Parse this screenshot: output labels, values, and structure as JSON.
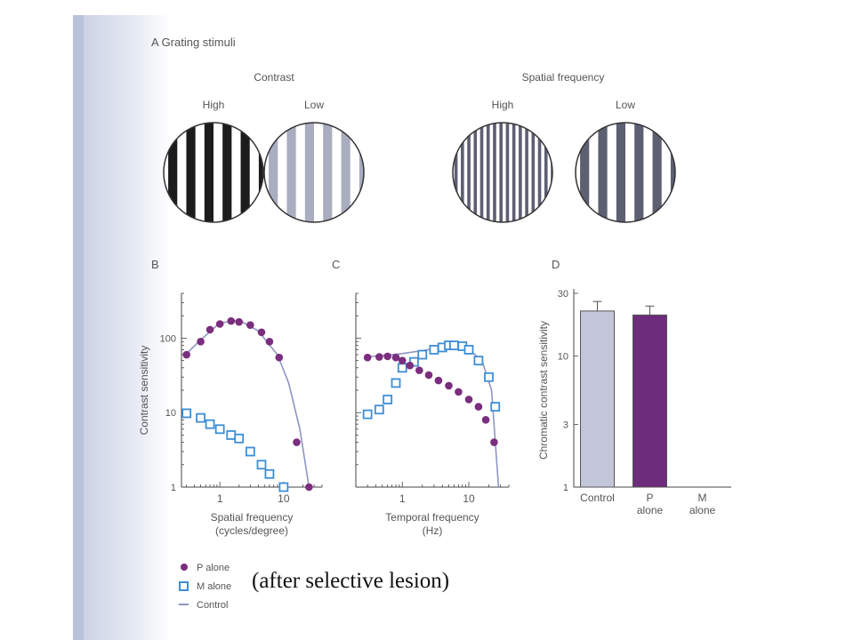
{
  "colors": {
    "p_alone": "#7b2d7e",
    "m_alone": "#3d8ed6",
    "control": "#8f95c4",
    "control_bar": "#c3c5d8",
    "p_bar": "#6e2c7c",
    "axis": "#444444",
    "text": "#555555"
  },
  "panel_a": {
    "title": "A  Grating stimuli",
    "contrast_title": "Contrast",
    "spatial_title": "Spatial frequency",
    "gratings": [
      {
        "label": "High",
        "stripe_count": 5,
        "stripe_color": "#1c1c1c"
      },
      {
        "label": "Low",
        "stripe_count": 5,
        "stripe_color": "#a9adbf"
      },
      {
        "label": "High",
        "stripe_count": 15,
        "stripe_color": "#5d5f72"
      },
      {
        "label": "Low",
        "stripe_count": 5,
        "stripe_color": "#5d5f72"
      }
    ]
  },
  "legend": {
    "p_alone": "P alone",
    "m_alone": "M alone",
    "control": "Control"
  },
  "note": "(after selective lesion)",
  "chart_data": [
    {
      "panel": "B",
      "type": "scatter",
      "xscale": "log",
      "yscale": "log",
      "xlabel": "Spatial frequency",
      "xlabel2": "(cycles/degree)",
      "ylabel": "Contrast sensitivity",
      "xlim": [
        0.25,
        40
      ],
      "ylim": [
        1,
        400
      ],
      "xticks": [
        1,
        10
      ],
      "yticks": [
        1,
        10,
        100
      ],
      "series": [
        {
          "name": "P alone",
          "marker": "dot",
          "x": [
            0.3,
            0.5,
            0.7,
            1.0,
            1.5,
            2.0,
            3.0,
            4.5,
            6.0,
            8.5,
            16,
            25
          ],
          "y": [
            60,
            90,
            130,
            155,
            170,
            165,
            150,
            120,
            90,
            55,
            4,
            1
          ]
        },
        {
          "name": "M alone",
          "marker": "square",
          "x": [
            0.3,
            0.5,
            0.7,
            1.0,
            1.5,
            2.0,
            3.0,
            4.5,
            6.0,
            10
          ],
          "y": [
            9.8,
            8.5,
            7,
            6,
            5,
            4.5,
            3,
            2,
            1.5,
            1
          ]
        },
        {
          "name": "Control",
          "marker": "line",
          "x": [
            0.3,
            0.5,
            1.0,
            2.0,
            4.0,
            8.0,
            12,
            18,
            25
          ],
          "y": [
            62,
            95,
            160,
            175,
            125,
            60,
            25,
            6,
            1
          ]
        }
      ]
    },
    {
      "panel": "C",
      "type": "scatter",
      "xscale": "log",
      "yscale": "log",
      "xlabel": "Temporal frequency",
      "xlabel2": "(Hz)",
      "ylabel": "",
      "xlim": [
        0.2,
        40
      ],
      "ylim": [
        1,
        400
      ],
      "xticks": [
        1,
        10
      ],
      "yticks": [
        1,
        10,
        100
      ],
      "series": [
        {
          "name": "P alone",
          "marker": "dot",
          "x": [
            0.3,
            0.45,
            0.6,
            0.8,
            1.0,
            1.3,
            1.8,
            2.5,
            3.5,
            5.0,
            7.0,
            10,
            14,
            18,
            24
          ],
          "y": [
            55,
            56,
            57,
            55,
            50,
            43,
            37,
            32,
            27,
            23,
            19,
            15,
            12,
            8,
            4
          ]
        },
        {
          "name": "M alone",
          "marker": "square",
          "x": [
            0.3,
            0.45,
            0.6,
            0.8,
            1.0,
            1.5,
            2.0,
            3.0,
            4.0,
            5.0,
            6.0,
            8.0,
            10,
            14,
            20,
            25
          ],
          "y": [
            9.5,
            11,
            15,
            25,
            40,
            48,
            60,
            70,
            75,
            80,
            80,
            78,
            70,
            50,
            30,
            12
          ]
        },
        {
          "name": "Control",
          "marker": "line",
          "x": [
            0.3,
            1.0,
            3.0,
            6.0,
            10,
            16,
            22,
            28
          ],
          "y": [
            56,
            62,
            72,
            80,
            72,
            48,
            20,
            1
          ]
        }
      ]
    },
    {
      "panel": "D",
      "type": "bar",
      "ylabel": "Chromatic contrast sensitivity",
      "yscale": "log",
      "ylim": [
        1,
        30
      ],
      "yticks": [
        1,
        3,
        10,
        30
      ],
      "categories": [
        "Control",
        "P alone",
        "M alone"
      ],
      "category_lines": [
        [
          "Control"
        ],
        [
          "P",
          "alone"
        ],
        [
          "M",
          "alone"
        ]
      ],
      "values": [
        22,
        20.5,
        null
      ],
      "error": [
        4,
        3.5,
        null
      ]
    }
  ]
}
